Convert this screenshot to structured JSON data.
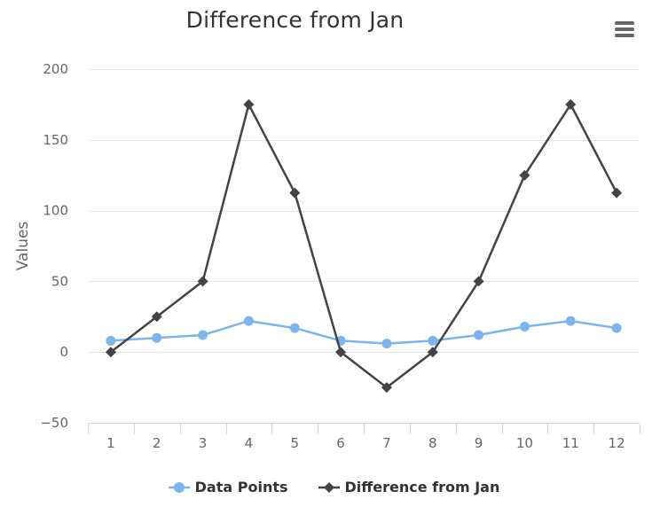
{
  "chart_data": {
    "type": "line",
    "title": "Difference from Jan",
    "xlabel": "",
    "ylabel": "Values",
    "categories": [
      "1",
      "2",
      "3",
      "4",
      "5",
      "6",
      "7",
      "8",
      "9",
      "10",
      "11",
      "12"
    ],
    "ylim": [
      -50,
      200
    ],
    "yticks": [
      -50,
      0,
      50,
      100,
      150,
      200
    ],
    "ytick_labels": [
      "−50",
      "0",
      "50",
      "100",
      "150",
      "200"
    ],
    "grid": true,
    "legend_position": "bottom-center",
    "series": [
      {
        "name": "Data Points",
        "color": "#7cb5ec",
        "marker": "circle",
        "values": [
          8,
          10,
          12,
          22,
          17,
          8,
          6,
          8,
          12,
          18,
          22,
          17
        ]
      },
      {
        "name": "Difference from Jan",
        "color": "#434348",
        "marker": "diamond",
        "values": [
          0,
          25,
          50,
          175,
          112.5,
          0,
          -25,
          0,
          50,
          125,
          175,
          112.5
        ]
      }
    ]
  },
  "ui": {
    "menu_icon": "hamburger-menu-icon"
  }
}
